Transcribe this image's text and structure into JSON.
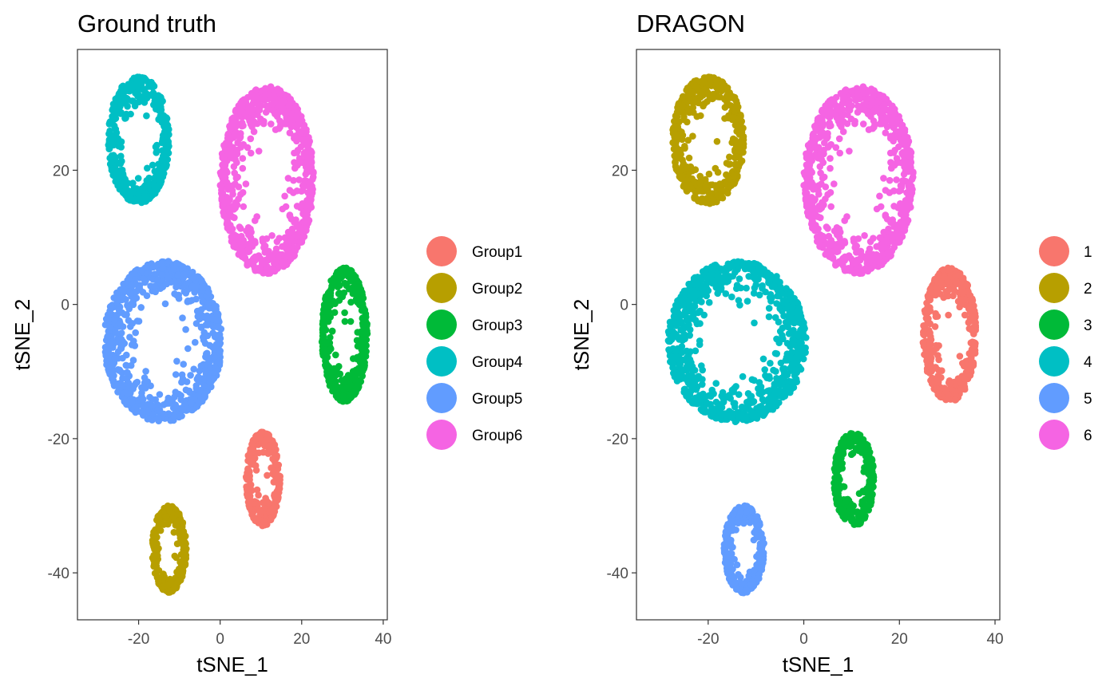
{
  "chart_data": [
    {
      "type": "scatter",
      "title": "Ground truth",
      "xlabel": "tSNE_1",
      "ylabel": "tSNE_2",
      "xlim": [
        -35,
        41
      ],
      "ylim": [
        -47,
        38
      ],
      "xticks": [
        -20,
        0,
        20,
        40
      ],
      "xtick_labels": [
        "-20",
        "0",
        "20",
        "40"
      ],
      "yticks": [
        20,
        0,
        -20,
        -40
      ],
      "ytick_labels": [
        "20",
        "0",
        "-20",
        "-40"
      ],
      "grid": false,
      "legend_position": "right",
      "series": [
        {
          "name": "Group1",
          "color": "#F8766D",
          "center": [
            10.5,
            -26
          ],
          "spread": [
            4.2,
            7.0
          ],
          "n": 280
        },
        {
          "name": "Group2",
          "color": "#B79F00",
          "center": [
            -12.5,
            -36.5
          ],
          "spread": [
            4.2,
            6.5
          ],
          "n": 270
        },
        {
          "name": "Group3",
          "color": "#00BA38",
          "center": [
            30.5,
            -4.5
          ],
          "spread": [
            5.6,
            10.0
          ],
          "n": 420
        },
        {
          "name": "Group4",
          "color": "#00BFC4",
          "center": [
            -20,
            24.5
          ],
          "spread": [
            7.5,
            9.5
          ],
          "n": 460
        },
        {
          "name": "Group5",
          "color": "#619CFF",
          "center": [
            -14,
            -5.5
          ],
          "spread": [
            14.5,
            12.0
          ],
          "n": 820
        },
        {
          "name": "Group6",
          "color": "#F564E3",
          "center": [
            11.5,
            18.5
          ],
          "spread": [
            11.5,
            14.0
          ],
          "n": 760
        }
      ]
    },
    {
      "type": "scatter",
      "title": "DRAGON",
      "xlabel": "tSNE_1",
      "ylabel": "tSNE_2",
      "xlim": [
        -35,
        41
      ],
      "ylim": [
        -47,
        38
      ],
      "xticks": [
        -20,
        0,
        20,
        40
      ],
      "xtick_labels": [
        "-20",
        "0",
        "20",
        "40"
      ],
      "yticks": [
        20,
        0,
        -20,
        -40
      ],
      "ytick_labels": [
        "20",
        "0",
        "-20",
        "-40"
      ],
      "grid": false,
      "legend_position": "right",
      "series": [
        {
          "name": "1",
          "color": "#F8766D",
          "center": [
            30.5,
            -4.5
          ],
          "spread": [
            5.6,
            10.0
          ],
          "n": 420
        },
        {
          "name": "2",
          "color": "#B79F00",
          "center": [
            -20,
            24.5
          ],
          "spread": [
            7.5,
            9.5
          ],
          "n": 460
        },
        {
          "name": "3",
          "color": "#00BA38",
          "center": [
            10.5,
            -26
          ],
          "spread": [
            4.2,
            7.0
          ],
          "n": 280
        },
        {
          "name": "4",
          "color": "#00BFC4",
          "center": [
            -14,
            -5.5
          ],
          "spread": [
            14.5,
            12.0
          ],
          "n": 820
        },
        {
          "name": "5",
          "color": "#619CFF",
          "center": [
            -12.5,
            -36.5
          ],
          "spread": [
            4.2,
            6.5
          ],
          "n": 270
        },
        {
          "name": "6",
          "color": "#F564E3",
          "center": [
            11.5,
            18.5
          ],
          "spread": [
            11.5,
            14.0
          ],
          "n": 760
        }
      ]
    }
  ]
}
